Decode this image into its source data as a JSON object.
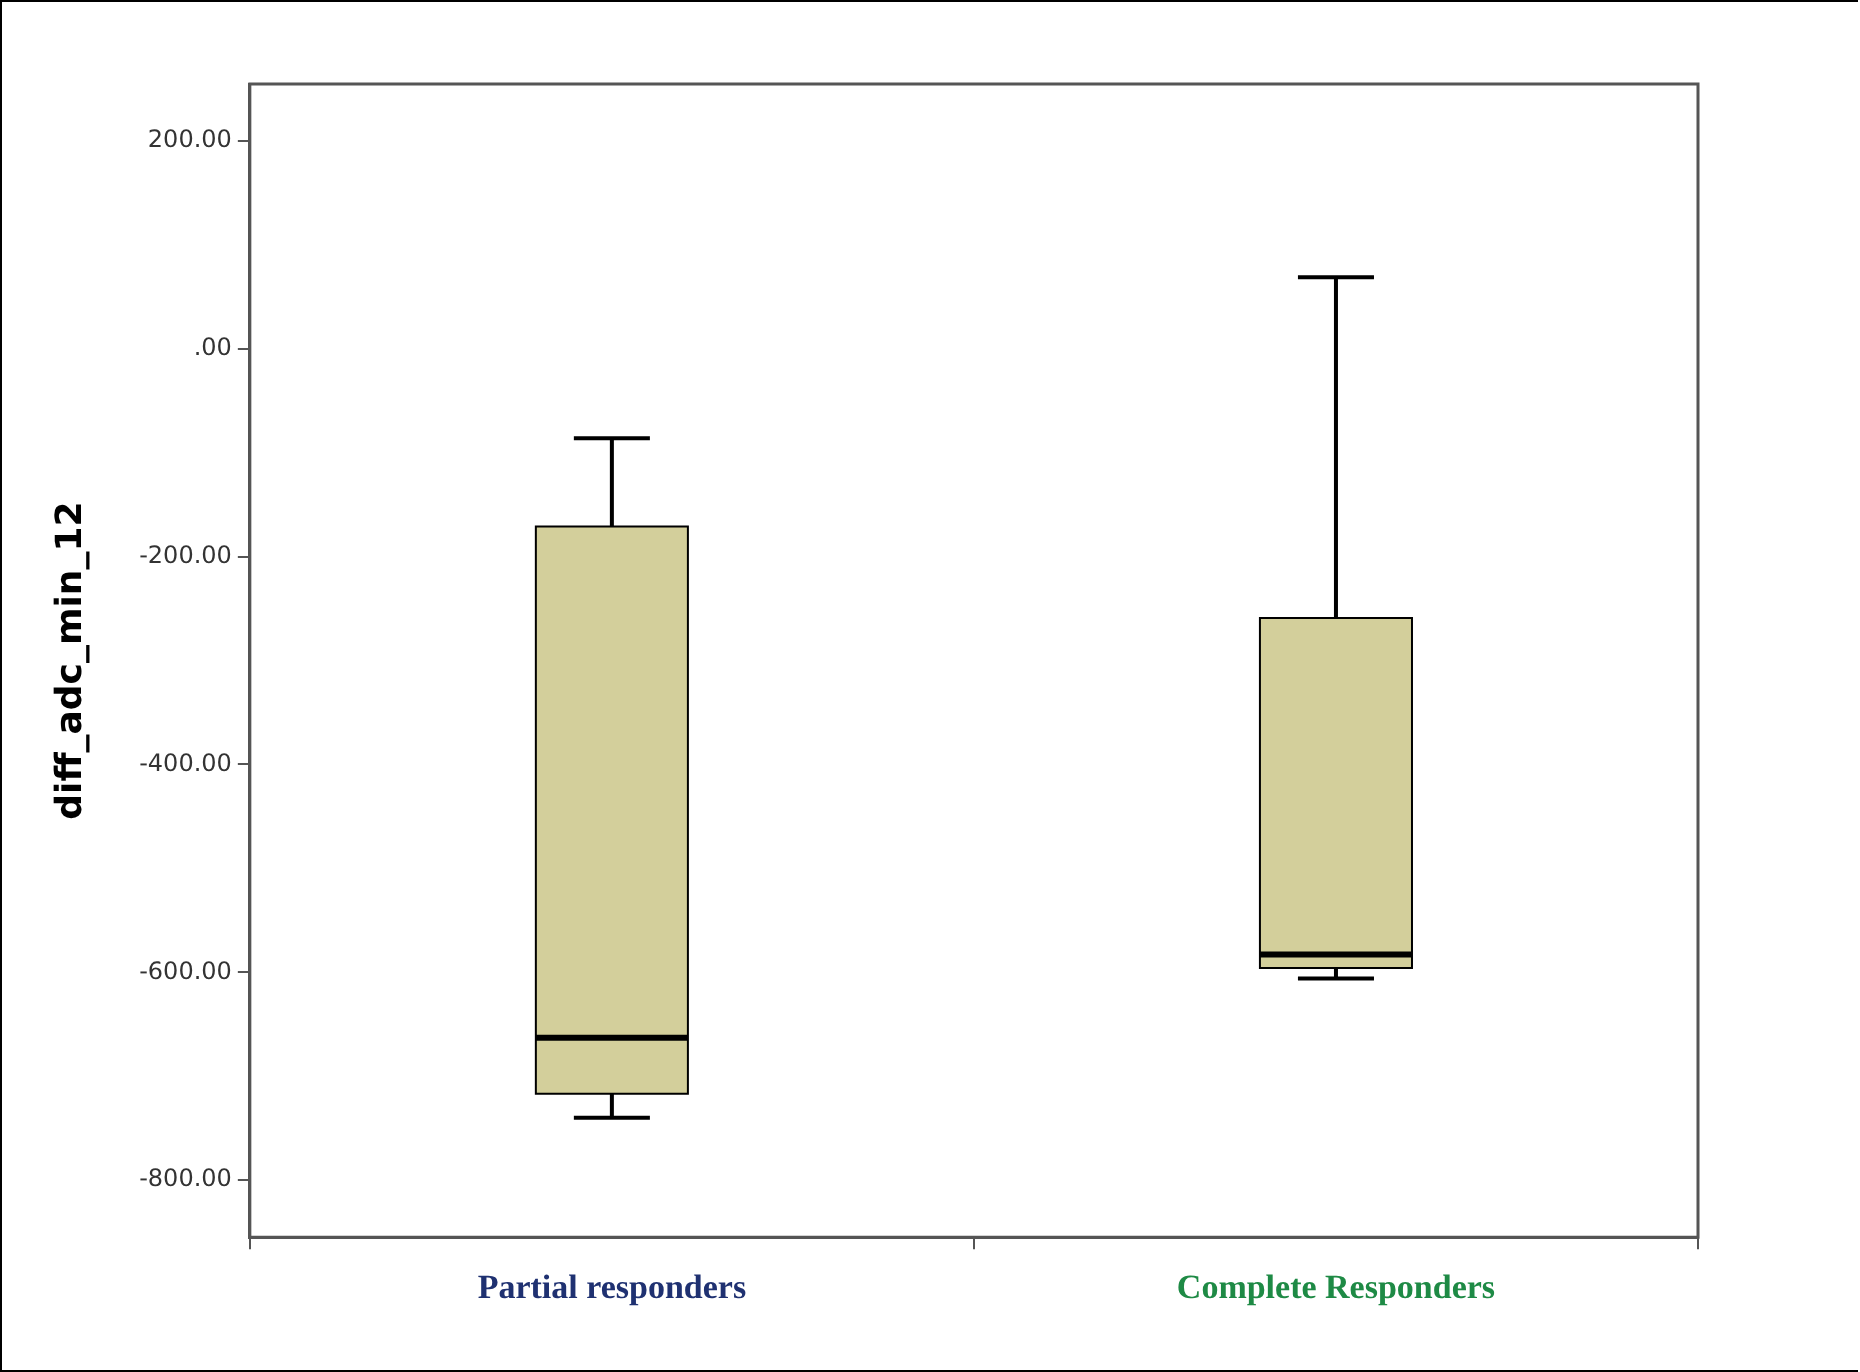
{
  "chart_data": {
    "type": "box",
    "ylabel": "diff_adc_min_12",
    "categories": [
      "Partial responders",
      "Complete Responders"
    ],
    "color": "#d3cf9b",
    "boxes": [
      {
        "low": -740,
        "q1": -717,
        "median": -663,
        "q3": -171,
        "high": -86
      },
      {
        "low": -606,
        "q1": -596,
        "median": -583,
        "q3": -259,
        "high": 69
      }
    ],
    "ylim": [
      -855,
      255
    ],
    "yticks": [
      {
        "value": -800,
        "label": "-800.00"
      },
      {
        "value": -600,
        "label": "-600.00"
      },
      {
        "value": -400,
        "label": "-400.00"
      },
      {
        "value": -200,
        "label": "-200.00"
      },
      {
        "value": 0,
        "label": ".00"
      },
      {
        "value": 200,
        "label": "200.00"
      }
    ],
    "grid": false,
    "legend": false
  }
}
